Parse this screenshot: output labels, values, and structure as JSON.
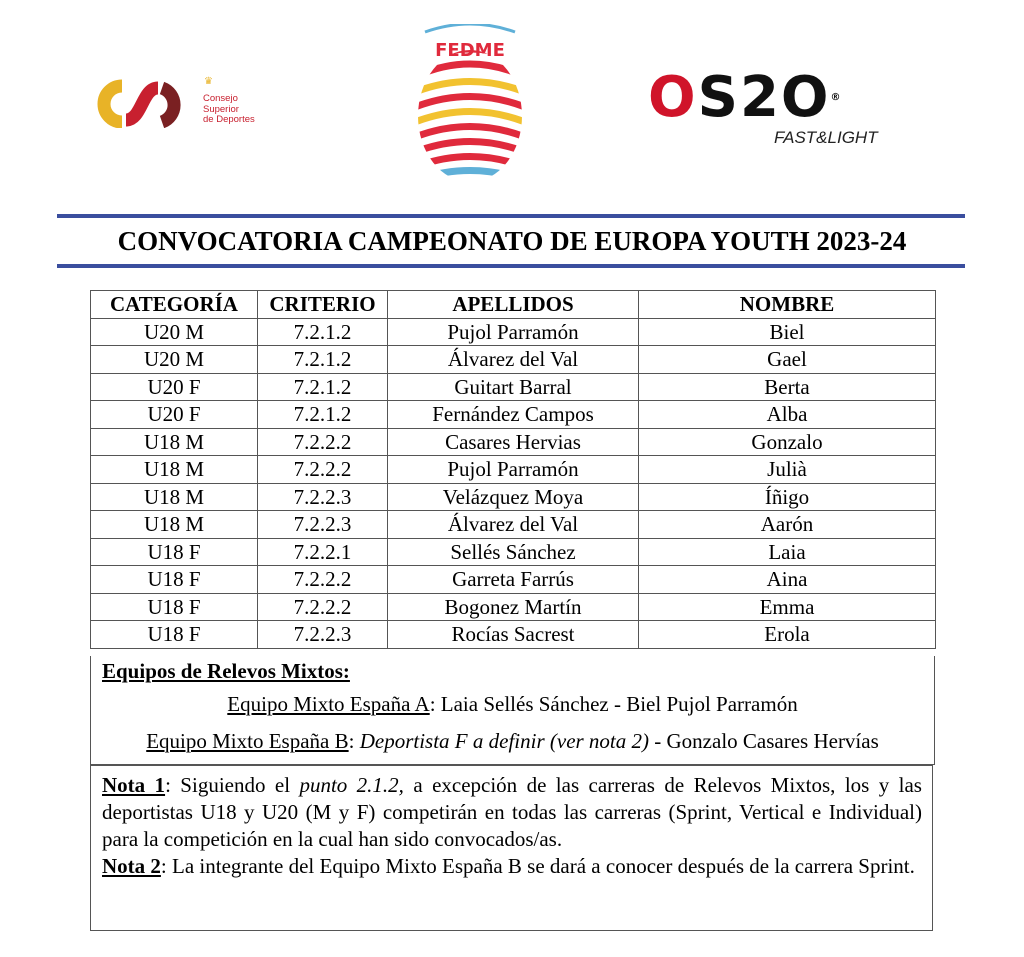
{
  "logos": {
    "csd": {
      "text": [
        "Consejo",
        "Superior",
        "de Deportes"
      ],
      "colors": [
        "#e8b327",
        "#c8202f",
        "#7a2022"
      ]
    },
    "fedme": {
      "text": "FEDME",
      "colors": [
        "#e02a3c",
        "#f2c230",
        "#5fb0d8"
      ]
    },
    "os2o": {
      "text": "OS2O",
      "tagline": "FAST&LIGHT",
      "colors": [
        "#d0142a",
        "#111111"
      ]
    }
  },
  "title": "CONVOCATORIA CAMPEONATO DE EUROPA YOUTH 2023-24",
  "table": {
    "headers": [
      "CATEGORÍA",
      "CRITERIO",
      "APELLIDOS",
      "NOMBRE"
    ],
    "rows": [
      [
        "U20 M",
        "7.2.1.2",
        "Pujol Parramón",
        "Biel"
      ],
      [
        "U20 M",
        "7.2.1.2",
        "Álvarez del Val",
        "Gael"
      ],
      [
        "U20 F",
        "7.2.1.2",
        "Guitart Barral",
        "Berta"
      ],
      [
        "U20 F",
        "7.2.1.2",
        "Fernández Campos",
        "Alba"
      ],
      [
        "U18 M",
        "7.2.2.2",
        "Casares Hervias",
        "Gonzalo"
      ],
      [
        "U18 M",
        "7.2.2.2",
        "Pujol Parramón",
        "Julià"
      ],
      [
        "U18 M",
        "7.2.2.3",
        "Velázquez Moya",
        "Íñigo"
      ],
      [
        "U18 M",
        "7.2.2.3",
        "Álvarez del Val",
        "Aarón"
      ],
      [
        "U18 F",
        "7.2.2.1",
        "Sellés Sánchez",
        "Laia"
      ],
      [
        "U18 F",
        "7.2.2.2",
        "Garreta Farrús",
        "Aina"
      ],
      [
        "U18 F",
        "7.2.2.2",
        "Bogonez Martín",
        "Emma"
      ],
      [
        "U18 F",
        "7.2.2.3",
        "Rocías Sacrest",
        "Erola"
      ]
    ]
  },
  "relevos": {
    "heading": "Equipos de Relevos Mixtos:",
    "team_a_label": "Equipo Mixto España A",
    "team_a_members": ": Laia Sellés Sánchez - Biel Pujol Parramón",
    "team_b_label": "Equipo Mixto España B",
    "team_b_sep": ": ",
    "team_b_tbd": "Deportista F a definir (ver nota 2)",
    "team_b_rest": " - Gonzalo Casares Hervías"
  },
  "notas": {
    "nota1_label": "Nota 1",
    "nota1_a": ": Siguiendo el ",
    "nota1_italic": "punto 2.1.2,",
    "nota1_b": " a excepción de las carreras de Relevos Mixtos, los y las deportistas U18 y U20 (M y F) competirán en todas las carreras (Sprint, Vertical e Individual) para la competición en la cual han sido convocados/as.",
    "nota2_label": "Nota 2",
    "nota2_text": ": La integrante del Equipo Mixto España B se dará a conocer después de la carrera Sprint."
  }
}
